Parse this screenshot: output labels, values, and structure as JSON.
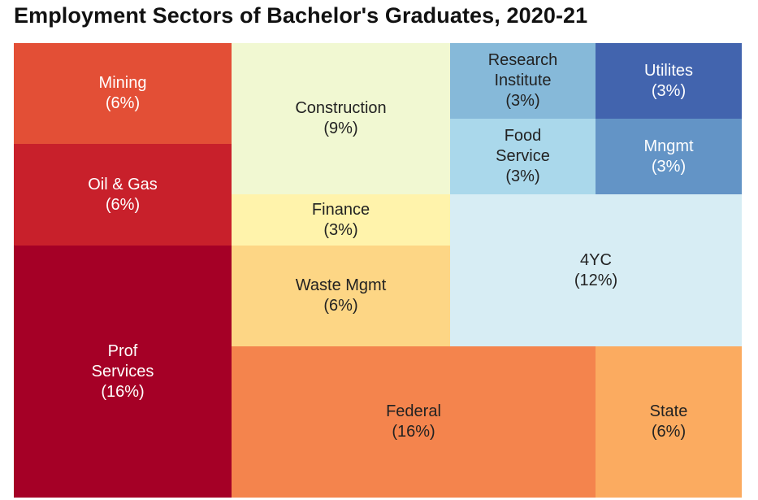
{
  "title": "Employment Sectors of Bachelor's Graduates, 2020-21",
  "chart_data": {
    "type": "treemap",
    "title": "Employment Sectors of Bachelor's Graduates, 2020-21",
    "unit": "%",
    "items": [
      {
        "label": "Mining",
        "display": "Mining",
        "value": 6,
        "value_label": "(6%)",
        "color": "#e34f36",
        "text_color": "#ffffff"
      },
      {
        "label": "Oil & Gas",
        "display": "Oil & Gas",
        "value": 6,
        "value_label": "(6%)",
        "color": "#c8202b",
        "text_color": "#ffffff"
      },
      {
        "label": "Prof Services",
        "display": "Prof\nServices",
        "value": 16,
        "value_label": "(16%)",
        "color": "#a50026",
        "text_color": "#ffffff"
      },
      {
        "label": "Construction",
        "display": "Construction",
        "value": 9,
        "value_label": "(9%)",
        "color": "#f1f8d2",
        "text_color": "#222222"
      },
      {
        "label": "Finance",
        "display": "Finance",
        "value": 3,
        "value_label": "(3%)",
        "color": "#fff3ab",
        "text_color": "#222222"
      },
      {
        "label": "Waste Mgmt",
        "display": "Waste Mgmt",
        "value": 6,
        "value_label": "(6%)",
        "color": "#fdd685",
        "text_color": "#222222"
      },
      {
        "label": "Research Institute",
        "display": "Research\nInstitute",
        "value": 3,
        "value_label": "(3%)",
        "color": "#86b9d9",
        "text_color": "#222222"
      },
      {
        "label": "Utilites",
        "display": "Utilites",
        "value": 3,
        "value_label": "(3%)",
        "color": "#4264ae",
        "text_color": "#ffffff"
      },
      {
        "label": "Food Service",
        "display": "Food\nService",
        "value": 3,
        "value_label": "(3%)",
        "color": "#aad8eb",
        "text_color": "#222222"
      },
      {
        "label": "Mngmt",
        "display": "Mngmt",
        "value": 3,
        "value_label": "(3%)",
        "color": "#6394c6",
        "text_color": "#ffffff"
      },
      {
        "label": "4YC",
        "display": "4YC",
        "value": 12,
        "value_label": "(12%)",
        "color": "#d7edf4",
        "text_color": "#222222"
      },
      {
        "label": "Federal",
        "display": "Federal",
        "value": 16,
        "value_label": "(16%)",
        "color": "#f4844d",
        "text_color": "#222222"
      },
      {
        "label": "State",
        "display": "State",
        "value": 6,
        "value_label": "(6%)",
        "color": "#fbab60",
        "text_color": "#222222"
      }
    ]
  }
}
